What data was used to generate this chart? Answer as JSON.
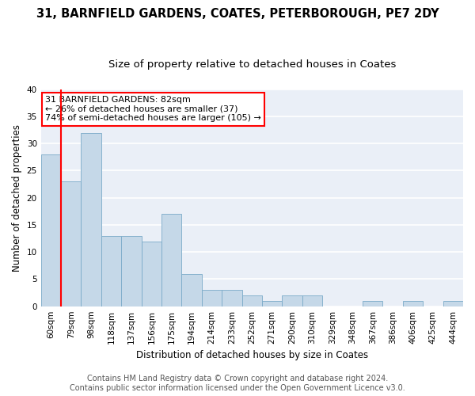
{
  "title": "31, BARNFIELD GARDENS, COATES, PETERBOROUGH, PE7 2DY",
  "subtitle": "Size of property relative to detached houses in Coates",
  "xlabel": "Distribution of detached houses by size in Coates",
  "ylabel": "Number of detached properties",
  "bins": [
    "60sqm",
    "79sqm",
    "98sqm",
    "118sqm",
    "137sqm",
    "156sqm",
    "175sqm",
    "194sqm",
    "214sqm",
    "233sqm",
    "252sqm",
    "271sqm",
    "290sqm",
    "310sqm",
    "329sqm",
    "348sqm",
    "367sqm",
    "386sqm",
    "406sqm",
    "425sqm",
    "444sqm"
  ],
  "values": [
    28,
    23,
    32,
    13,
    13,
    12,
    17,
    6,
    3,
    3,
    2,
    1,
    2,
    2,
    0,
    0,
    1,
    0,
    1,
    0,
    1
  ],
  "bar_color": "#c5d8e8",
  "bar_edge_color": "#7aaac8",
  "property_line_color": "red",
  "annotation_text": "31 BARNFIELD GARDENS: 82sqm\n← 26% of detached houses are smaller (37)\n74% of semi-detached houses are larger (105) →",
  "annotation_box_color": "white",
  "annotation_box_edge_color": "red",
  "footer_line1": "Contains HM Land Registry data © Crown copyright and database right 2024.",
  "footer_line2": "Contains public sector information licensed under the Open Government Licence v3.0.",
  "ylim": [
    0,
    40
  ],
  "yticks": [
    0,
    5,
    10,
    15,
    20,
    25,
    30,
    35,
    40
  ],
  "bg_color": "#eaeff7",
  "grid_color": "white",
  "title_fontsize": 10.5,
  "subtitle_fontsize": 9.5,
  "axis_label_fontsize": 8.5,
  "tick_fontsize": 7.5,
  "annotation_fontsize": 8,
  "footer_fontsize": 7
}
